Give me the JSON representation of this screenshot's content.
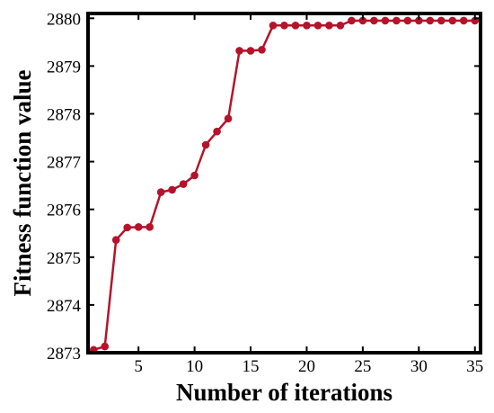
{
  "chart_data": {
    "type": "line",
    "title": "",
    "xlabel": "Number of iterations",
    "ylabel": "Fitness function value",
    "xlim": [
      0.5,
      35.5
    ],
    "ylim": [
      2873,
      2880.1
    ],
    "x_ticks": [
      5,
      10,
      15,
      20,
      25,
      30,
      35
    ],
    "y_ticks": [
      2873,
      2874,
      2875,
      2876,
      2877,
      2878,
      2879,
      2880
    ],
    "grid": false,
    "legend": "none",
    "series": [
      {
        "color": "#b5132b",
        "x": [
          1,
          2,
          3,
          4,
          5,
          6,
          7,
          8,
          9,
          10,
          11,
          12,
          13,
          14,
          15,
          16,
          17,
          18,
          19,
          20,
          21,
          22,
          23,
          24,
          25,
          26,
          27,
          28,
          29,
          30,
          31,
          32,
          33,
          34,
          35
        ],
        "values": [
          2873.06,
          2873.13,
          2875.36,
          2875.62,
          2875.63,
          2875.63,
          2876.36,
          2876.41,
          2876.53,
          2876.71,
          2877.35,
          2877.63,
          2877.9,
          2879.32,
          2879.32,
          2879.34,
          2879.85,
          2879.85,
          2879.85,
          2879.85,
          2879.85,
          2879.85,
          2879.85,
          2879.95,
          2879.95,
          2879.95,
          2879.95,
          2879.95,
          2879.95,
          2879.95,
          2879.95,
          2879.95,
          2879.95,
          2879.95,
          2879.95
        ]
      }
    ]
  }
}
